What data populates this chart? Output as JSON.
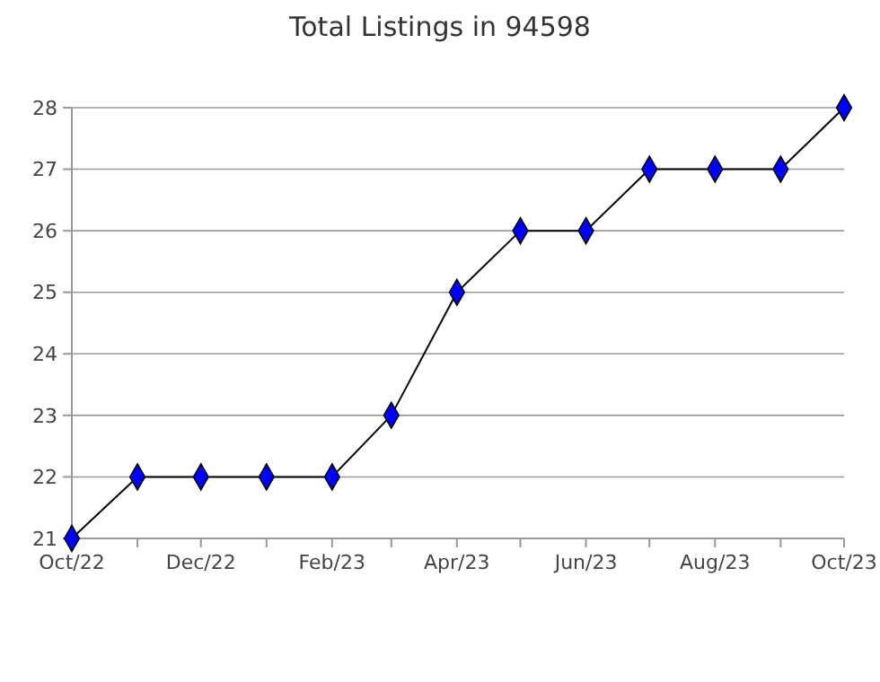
{
  "chart_data": {
    "type": "line",
    "title": "Total Listings in 94598",
    "x": [
      "2022-10",
      "2022-11",
      "2022-12",
      "2023-01",
      "2023-02",
      "2023-03",
      "2023-04",
      "2023-05",
      "2023-06",
      "2023-07",
      "2023-08",
      "2023-09",
      "2023-10"
    ],
    "series": [
      {
        "color": "#0000ff",
        "values": [
          21,
          22,
          22,
          22,
          22,
          23,
          25,
          26,
          26,
          27,
          27,
          27,
          28
        ]
      }
    ],
    "xlim": [
      "2022-10",
      "2023-10"
    ],
    "xticks": [
      {
        "value": "2022-10",
        "label": "Oct/22"
      },
      {
        "value": "2022-11",
        "label": null
      },
      {
        "value": "2022-12",
        "label": "Dec/22"
      },
      {
        "value": "2023-01",
        "label": null
      },
      {
        "value": "2023-02",
        "label": "Feb/23"
      },
      {
        "value": "2023-03",
        "label": null
      },
      {
        "value": "2023-04",
        "label": "Apr/23"
      },
      {
        "value": "2023-05",
        "label": null
      },
      {
        "value": "2023-06",
        "label": "Jun/23"
      },
      {
        "value": "2023-07",
        "label": null
      },
      {
        "value": "2023-08",
        "label": "Aug/23"
      },
      {
        "value": "2023-09",
        "label": null
      },
      {
        "value": "2023-10",
        "label": "Oct/23"
      }
    ],
    "ylim": [
      21,
      28
    ],
    "yticks": [
      21,
      22,
      23,
      24,
      25,
      26,
      27,
      28
    ],
    "grid": "y",
    "marker": "diamond",
    "line_style": "solid"
  }
}
